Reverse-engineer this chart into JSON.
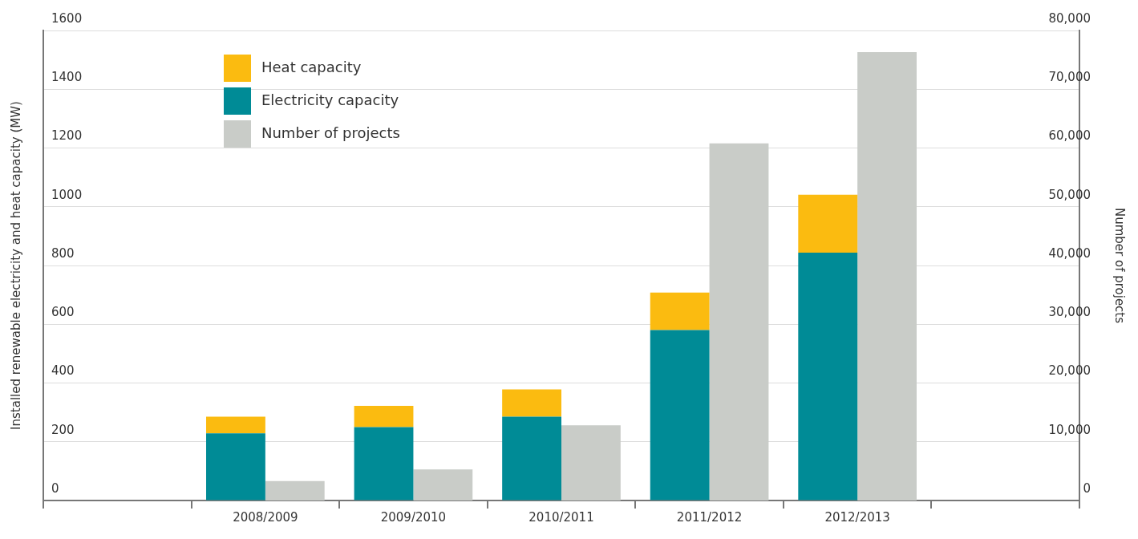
{
  "chart_data": {
    "type": "bar",
    "ylabel": "Installed renewable electricity and heat capacity (MW)",
    "y2label": "Number of projects",
    "categories": [
      null,
      "2008/2009",
      "2009/2010",
      "2010/2011",
      "2011/2012",
      "2012/2013",
      null
    ],
    "stacked": true,
    "series": [
      {
        "name": "Electricity capacity",
        "color": "#008b96",
        "values": [
          null,
          229,
          250,
          285,
          580,
          844,
          null
        ]
      },
      {
        "name": "Heat capacity",
        "color": "#fbbb10",
        "values": [
          null,
          56,
          72,
          93,
          128,
          197,
          null
        ]
      },
      {
        "name": "Number of projects",
        "color": "#c9ccc8",
        "axis": "y2",
        "values": [
          null,
          3300,
          5300,
          12800,
          60800,
          76300,
          null
        ]
      }
    ],
    "ylim": [
      0,
      1600
    ],
    "yticks": [
      0,
      200,
      400,
      600,
      800,
      1000,
      1200,
      1400,
      1600
    ],
    "y2lim": [
      0,
      80000
    ],
    "y2ticks": [
      {
        "value": 0,
        "label": "0"
      },
      {
        "value": 10000,
        "label": "10,000"
      },
      {
        "value": 20000,
        "label": "20,000"
      },
      {
        "value": 30000,
        "label": "30,000"
      },
      {
        "value": 40000,
        "label": "40,000"
      },
      {
        "value": 50000,
        "label": "50,000"
      },
      {
        "value": 60000,
        "label": "60,000"
      },
      {
        "value": 70000,
        "label": "70,000"
      },
      {
        "value": 80000,
        "label": "80,000"
      }
    ],
    "grid": "y",
    "legend": "top left"
  }
}
